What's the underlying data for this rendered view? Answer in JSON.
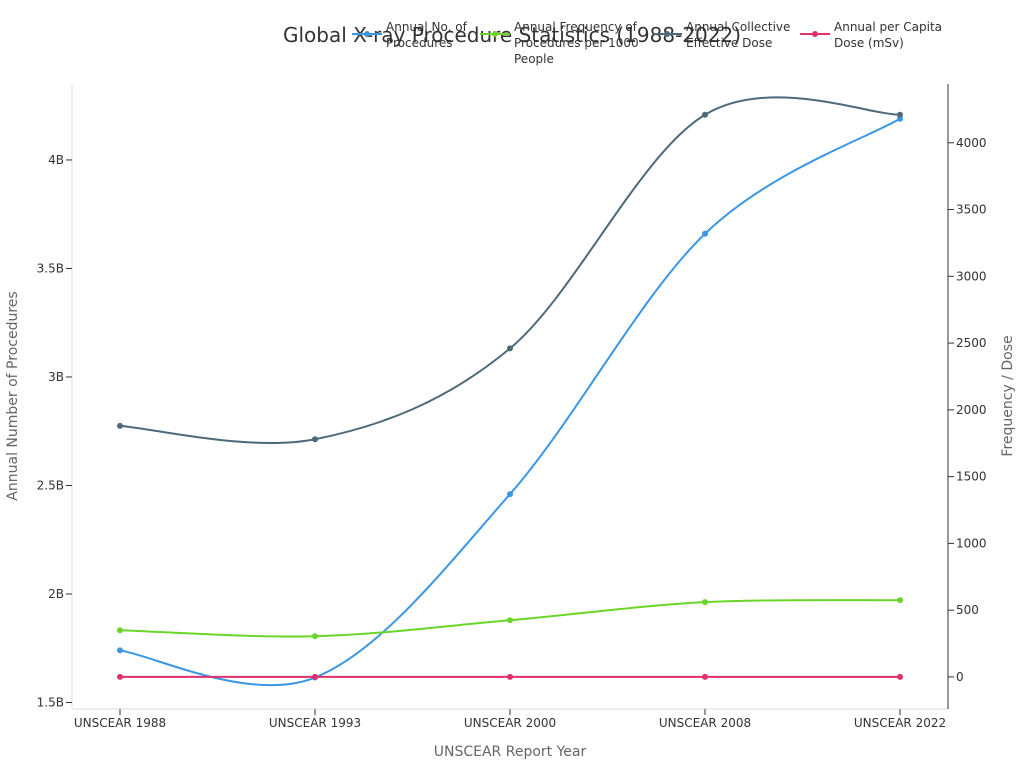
{
  "chart_data": {
    "type": "line",
    "title": "Global X-ray Procedure Statistics (1988-2022)",
    "xlabel": "UNSCEAR Report Year",
    "ylabel_left": "Annual Number of Procedures",
    "ylabel_right": "Frequency / Dose",
    "categories": [
      "UNSCEAR 1988",
      "UNSCEAR 1993",
      "UNSCEAR 2000",
      "UNSCEAR 2008",
      "UNSCEAR 2022"
    ],
    "y_left": {
      "lim": [
        1.47,
        4.35
      ],
      "ticks": [
        1.5,
        2,
        2.5,
        3,
        3.5,
        4
      ],
      "tick_labels": [
        "1.5B",
        "2B",
        "2.5B",
        "3B",
        "3.5B",
        "4B"
      ],
      "unit": "billions"
    },
    "y_right": {
      "lim": [
        -240,
        4440
      ],
      "ticks": [
        0,
        500,
        1000,
        1500,
        2000,
        2500,
        3000,
        3500,
        4000
      ],
      "tick_labels": [
        "0",
        "500",
        "1000",
        "1500",
        "2000",
        "2500",
        "3000",
        "3500",
        "4000"
      ]
    },
    "series": [
      {
        "name": "Annual No. of Procedures",
        "axis": "left",
        "color": "#3b97e3",
        "values": [
          1.74,
          1.615,
          2.46,
          3.66,
          4.19
        ]
      },
      {
        "name": "Annual Frequency of Procedures per 1000 People",
        "axis": "right",
        "color": "#6bd62a",
        "values": [
          350,
          305,
          425,
          560,
          575
        ]
      },
      {
        "name": "Annual Collective Effective Dose",
        "axis": "right",
        "color": "#4d6a7a",
        "values": [
          1880,
          1780,
          2460,
          4210,
          4210
        ]
      },
      {
        "name": "Annual per Capita Dose (mSv)",
        "axis": "right",
        "color": "#e0306e",
        "values": [
          0.52,
          0.6,
          0.4,
          0.62,
          0.57
        ]
      }
    ],
    "legend": {
      "position": "top",
      "labels": [
        [
          "Annual No. of",
          "Procedures"
        ],
        [
          "Annual Frequency of",
          "Procedures per 1000",
          "People"
        ],
        [
          "Annual Collective",
          "Effective Dose"
        ],
        [
          "Annual per Capita",
          "Dose (mSv)"
        ]
      ]
    },
    "grid": false
  }
}
